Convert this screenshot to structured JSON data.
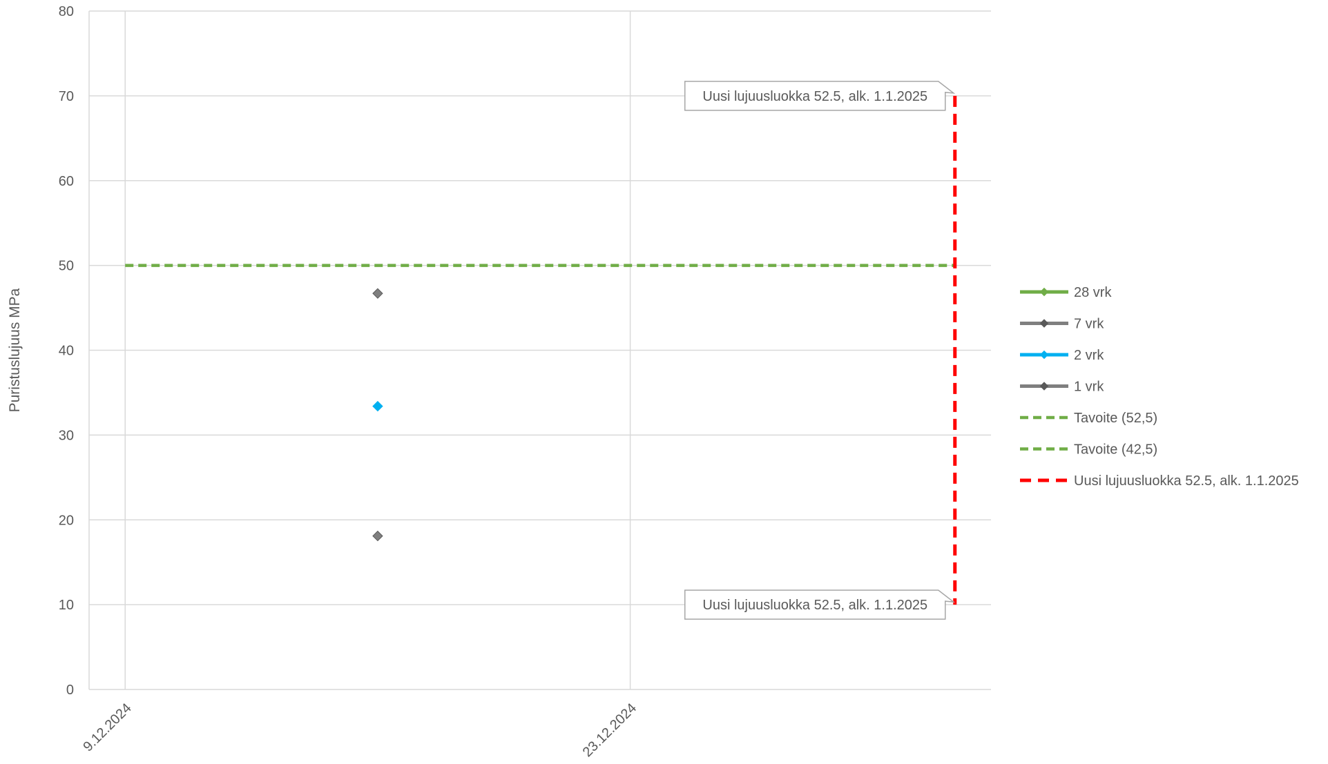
{
  "chart_data": {
    "type": "line",
    "title": "",
    "ylabel": "Puristuslujuus MPa",
    "xlabel": "",
    "ylim": [
      0,
      80
    ],
    "y_ticks": [
      0,
      10,
      20,
      30,
      40,
      50,
      60,
      70,
      80
    ],
    "xlim": [
      "8.12.2024",
      "2.1.2025"
    ],
    "x_ticks": [
      "9.12.2024",
      "23.12.2024"
    ],
    "grid": true,
    "legend_position": "right",
    "series": [
      {
        "name": "28 vrk",
        "color": "#70ad47",
        "style": "solid-marker",
        "points": []
      },
      {
        "name": "7 vrk",
        "color": "#7f7f7f",
        "style": "solid-marker",
        "points": [
          {
            "x": "16.12.2024",
            "y": 46.7
          }
        ]
      },
      {
        "name": "2 vrk",
        "color": "#00b0f0",
        "style": "solid-marker",
        "points": [
          {
            "x": "16.12.2024",
            "y": 33.4
          }
        ]
      },
      {
        "name": "1 vrk",
        "color": "#7f7f7f",
        "style": "solid-marker",
        "points": [
          {
            "x": "16.12.2024",
            "y": 18.1
          }
        ]
      },
      {
        "name": "Tavoite (52,5)",
        "color": "#70ad47",
        "style": "dashed",
        "points": []
      },
      {
        "name": "Tavoite (42,5)",
        "color": "#70ad47",
        "style": "dashed",
        "points": [
          {
            "x": "9.12.2024",
            "y": 50
          },
          {
            "x": "1.1.2025",
            "y": 50
          }
        ]
      },
      {
        "name": "Uusi lujuusluokka 52.5, alk. 1.1.2025",
        "color": "#ff0000",
        "style": "dashed",
        "points": [
          {
            "x": "1.1.2025",
            "y": 70
          },
          {
            "x": "1.1.2025",
            "y": 10
          }
        ]
      }
    ],
    "annotations": [
      {
        "text": "Uusi lujuusluokka 52.5, alk. 1.1.2025",
        "x": "1.1.2025",
        "y": 70
      },
      {
        "text": "Uusi lujuusluokka 52.5, alk. 1.1.2025",
        "x": "1.1.2025",
        "y": 10
      }
    ]
  }
}
